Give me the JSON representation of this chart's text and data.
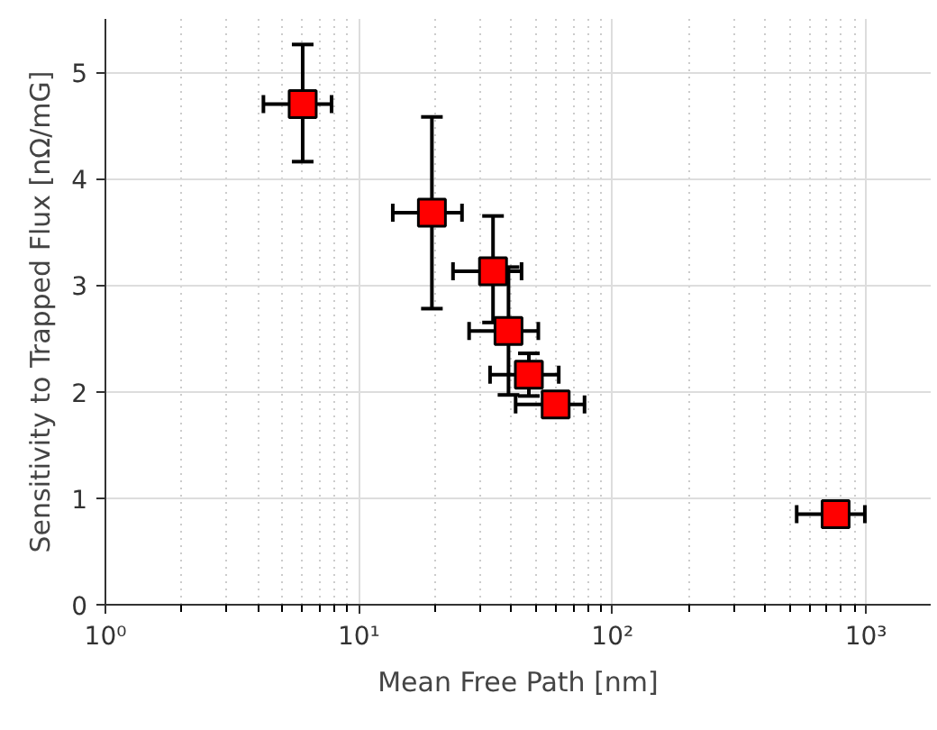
{
  "chart_data": {
    "type": "scatter",
    "xlabel": "Mean Free Path [nm]",
    "ylabel": "Sensitivity to Trapped Flux [nΩ/mG]",
    "log": "x",
    "grid": true,
    "marker": "square",
    "xlim": [
      1,
      1800
    ],
    "ylim": [
      0,
      5.5
    ],
    "xticks": [
      {
        "value": 1,
        "label": "10⁰"
      },
      {
        "value": 10,
        "label": "10¹"
      },
      {
        "value": 100,
        "label": "10²"
      },
      {
        "value": 1000,
        "label": "10³"
      }
    ],
    "yticks": [
      0,
      1,
      2,
      3,
      4,
      5
    ],
    "series": [
      {
        "color": "#ff0000",
        "x": [
          6.0,
          19.4,
          33.8,
          38.9,
          46.8,
          59.7,
          759
        ],
        "values": [
          4.7,
          3.68,
          3.13,
          2.57,
          2.16,
          1.88,
          0.85
        ],
        "errors": [
          [
            4.16,
            5.26
          ],
          [
            2.78,
            4.58
          ],
          [
            2.65,
            3.65
          ],
          [
            1.97,
            3.17
          ],
          [
            1.96,
            2.36
          ],
          null,
          null
        ],
        "xerrors": [
          [
            4.2,
            7.8
          ],
          [
            13.6,
            25.5
          ],
          [
            23.5,
            43.8
          ],
          [
            27.2,
            51
          ],
          [
            32.9,
            61.4
          ],
          [
            41.5,
            77.6
          ],
          [
            533,
            990
          ]
        ]
      }
    ]
  }
}
